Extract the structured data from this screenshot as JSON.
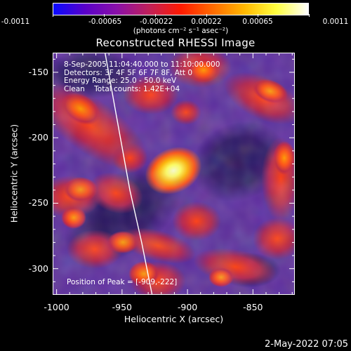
{
  "colorbar": {
    "tick_labels": [
      "-0.0011",
      "-0.00065",
      "-0.00022",
      "0.00022",
      "0.00065",
      "0.0011"
    ],
    "unit_label": "(photons cm⁻² s⁻¹ asec⁻²)"
  },
  "plot": {
    "title": "Reconstructed RHESSI Image",
    "info_lines": [
      "8-Sep-2005 11:04:40.000 to 11:10:00.000",
      "Detectors: 3F 4F 5F 6F 7F 8F, Att 0",
      "Energy Range: 25.0 - 50.0 keV",
      "Clean    Total counts: 1.42E+04"
    ],
    "peak_label": "Position of Peak = [-909,-222]",
    "xlabel": "Heliocentric X (arcsec)",
    "ylabel": "Heliocentric Y (arcsec)",
    "x_tick_labels": [
      "-1000",
      "-950",
      "-900",
      "-850"
    ],
    "y_tick_labels": [
      "-150",
      "-200",
      "-250",
      "-300"
    ],
    "xlim": [
      -1003,
      -818
    ],
    "ylim": [
      -320,
      -135
    ],
    "x_ticks": [
      -1000,
      -950,
      -900,
      -850
    ],
    "y_ticks": [
      -150,
      -200,
      -250,
      -300
    ],
    "peak_position": [
      -909,
      -222
    ],
    "limb_line_points": [
      [
        -963,
        -135
      ],
      [
        -954,
        -185
      ],
      [
        -944,
        -240
      ],
      [
        -935,
        -280
      ],
      [
        -927,
        -320
      ]
    ]
  },
  "timestamp": "2-May-2022 07:05",
  "colors": {
    "background": "#000000",
    "foreground": "#ffffff",
    "colorbar_stops": [
      "#0a0aff",
      "#5a00c8",
      "#8a10a8",
      "#c0205a",
      "#ff1a00",
      "#ff6a00",
      "#ffb800",
      "#ffff40",
      "#ffffff"
    ],
    "image_base": "#5a2c9c",
    "image_dark": "#2e1768",
    "image_mid": "#a8204c",
    "image_hot": "#ff4a10",
    "image_peak": "#ffff90"
  }
}
